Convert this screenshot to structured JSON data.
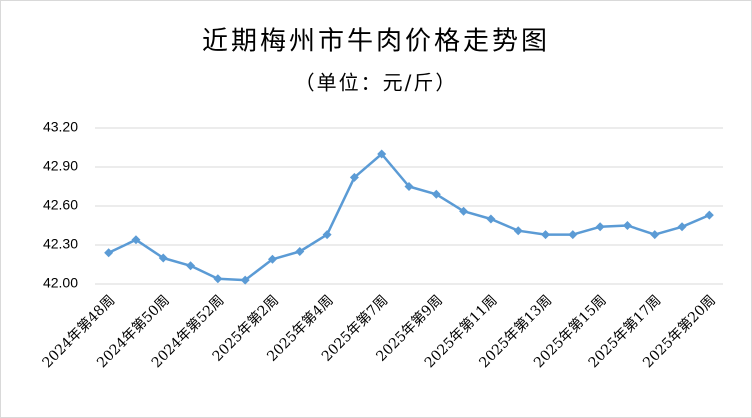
{
  "chart_data": {
    "type": "line",
    "title": "近期梅州市牛肉价格走势图",
    "subtitle": "（单位：元/斤）",
    "categories": [
      "2024年第48周",
      null,
      "2024年第50周",
      null,
      "2024年第52周",
      null,
      "2025年第2周",
      null,
      "2025年第4周",
      null,
      "2025年第7周",
      null,
      "2025年第9周",
      null,
      "2025年第11周",
      null,
      "2025年第13周",
      null,
      "2025年第15周",
      null,
      "2025年第17周",
      null,
      "2025年第20周"
    ],
    "values": [
      42.24,
      42.34,
      42.2,
      42.14,
      42.04,
      42.03,
      42.19,
      42.25,
      42.38,
      42.82,
      43.0,
      42.75,
      42.69,
      42.56,
      42.5,
      42.41,
      42.38,
      42.38,
      42.44,
      42.45,
      42.38,
      42.44,
      42.53
    ],
    "color": "#5b9bd5",
    "ylim": [
      42.0,
      43.2
    ],
    "yticks": [
      {
        "value": 42.0,
        "label": "42.00"
      },
      {
        "value": 42.3,
        "label": "42.30"
      },
      {
        "value": 42.6,
        "label": "42.60"
      },
      {
        "value": 42.9,
        "label": "42.90"
      },
      {
        "value": 43.2,
        "label": "43.20"
      }
    ],
    "grid": true
  }
}
